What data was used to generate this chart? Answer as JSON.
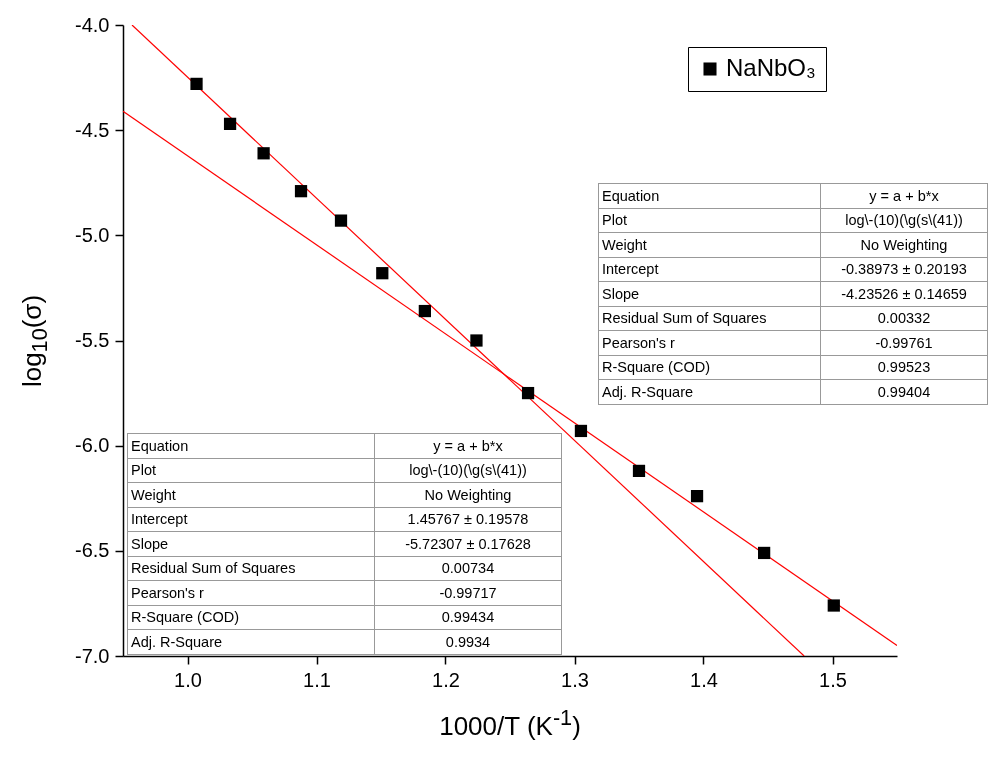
{
  "chart_data": {
    "type": "scatter",
    "xlabel": "1000/T (K$^{-1}$)",
    "ylabel": "log$_{10}$(σ)",
    "xlim": [
      0.95,
      1.55
    ],
    "xticks": [
      {
        "value": 1,
        "label": "1.0"
      },
      1.1,
      1.2,
      1.3,
      1.4,
      1.5
    ],
    "ylim": [
      -7.0,
      -4.0
    ],
    "yticks": [
      {
        "value": -7,
        "label": "-7.0"
      },
      {
        "value": -6.5,
        "label": "-6.5"
      },
      {
        "value": -6,
        "label": "-6.0"
      },
      {
        "value": -5.5,
        "label": "-5.5"
      },
      {
        "value": -5,
        "label": "-5.0"
      },
      {
        "value": -4.5,
        "label": "-4.5"
      },
      {
        "value": -4,
        "label": "-4.0"
      }
    ],
    "grid": false,
    "legend": "top right",
    "series": [
      {
        "name": "NaNbO₃",
        "marker": "square",
        "color": "#000000",
        "x": [
          1.007,
          1.033,
          1.059,
          1.088,
          1.119,
          1.151,
          1.184,
          1.224,
          1.264,
          1.305,
          1.35,
          1.395,
          1.447,
          1.501
        ],
        "values": [
          -4.28,
          -4.47,
          -4.61,
          -4.79,
          -4.93,
          -5.18,
          -5.36,
          -5.5,
          -5.75,
          -5.93,
          -6.12,
          -6.24,
          -6.51,
          -6.76
        ]
      },
      {
        "type": "line",
        "color": "#ff0000",
        "x": [
          0.957,
          1.478
        ],
        "values": [
          -4.0,
          -7.0
        ]
      },
      {
        "type": "line",
        "color": "#ff0000",
        "x": [
          0.95,
          1.55
        ],
        "values": [
          -4.41,
          -6.95
        ]
      }
    ],
    "annotations": [
      "Equation",
      "y = a + b*x",
      "Plot",
      "log\\-(10)(\\g(s\\(41))",
      "Weight",
      "No Weighting",
      "Intercept",
      "-0.38973 ± 0.20193",
      "Slope",
      "-4.23526 ± 0.14659",
      "Residual Sum of Squares",
      "0.00332",
      "Pearson's r",
      "-0.99761",
      "R-Square (COD)",
      "0.99523",
      "Adj. R-Square",
      "0.99404",
      "Equation",
      "y = a + b*x",
      "Plot",
      "log\\-(10)(\\g(s\\(41))",
      "Weight",
      "No Weighting",
      "Intercept",
      "1.45767 ± 0.19578",
      "Slope",
      "-5.72307 ± 0.17628",
      "Residual Sum of Squares",
      "0.00734",
      "Pearson's r",
      "-0.99717",
      "R-Square (COD)",
      "0.99434",
      "Adj. R-Square",
      "0.9934"
    ]
  }
}
